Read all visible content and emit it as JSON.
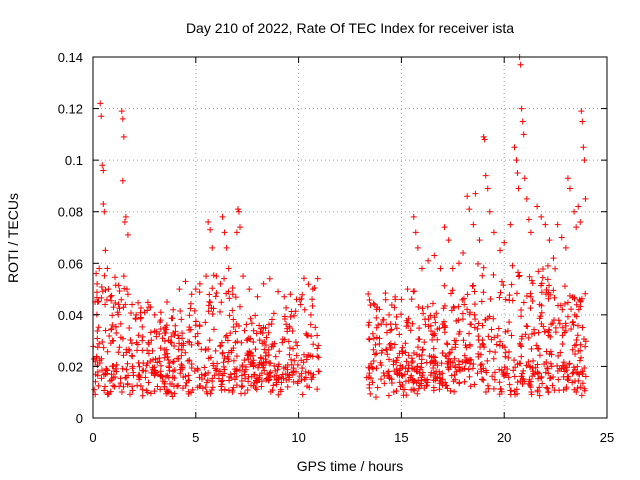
{
  "chart_data": {
    "type": "scatter",
    "title": "Day 210 of 2022, Rate Of TEC Index for receiver ista",
    "xlabel": "GPS time / hours",
    "ylabel": "ROTI / TECUs",
    "xlim": [
      0,
      25
    ],
    "ylim": [
      0,
      0.14
    ],
    "xticks": [
      0,
      5,
      10,
      15,
      20,
      25
    ],
    "xtick_labels": [
      "0",
      "5",
      "10",
      "15",
      "20",
      "25"
    ],
    "yticks": [
      0,
      0.02,
      0.04,
      0.06,
      0.08,
      0.1,
      0.12,
      0.14
    ],
    "ytick_labels": [
      "0",
      "0.02",
      "0.04",
      "0.06",
      "0.08",
      "0.1",
      "0.12",
      "0.14"
    ],
    "grid": true,
    "marker": "+",
    "color": "#ff0000",
    "data_gap_hours": [
      11.0,
      13.3
    ],
    "series": [
      {
        "name": "ROTI",
        "points": [
          [
            0.1,
            0.045
          ],
          [
            0.15,
            0.056
          ],
          [
            0.2,
            0.052
          ],
          [
            0.3,
            0.058
          ],
          [
            0.35,
            0.122
          ],
          [
            0.4,
            0.117
          ],
          [
            0.45,
            0.098
          ],
          [
            0.5,
            0.096
          ],
          [
            0.5,
            0.083
          ],
          [
            0.55,
            0.08
          ],
          [
            0.6,
            0.065
          ],
          [
            0.7,
            0.058
          ],
          [
            0.75,
            0.05
          ],
          [
            0.85,
            0.047
          ],
          [
            1.0,
            0.043
          ],
          [
            1.2,
            0.041
          ],
          [
            1.4,
            0.119
          ],
          [
            1.45,
            0.116
          ],
          [
            1.5,
            0.109
          ],
          [
            1.45,
            0.092
          ],
          [
            1.6,
            0.078
          ],
          [
            1.55,
            0.076
          ],
          [
            1.7,
            0.071
          ],
          [
            1.5,
            0.055
          ],
          [
            1.7,
            0.048
          ],
          [
            1.65,
            0.05
          ],
          [
            1.9,
            0.044
          ],
          [
            2.1,
            0.04
          ],
          [
            2.5,
            0.041
          ],
          [
            2.8,
            0.043
          ],
          [
            3.0,
            0.04
          ],
          [
            3.3,
            0.041
          ],
          [
            3.6,
            0.045
          ],
          [
            3.9,
            0.042
          ],
          [
            4.2,
            0.05
          ],
          [
            4.5,
            0.053
          ],
          [
            4.8,
            0.048
          ],
          [
            5.0,
            0.05
          ],
          [
            5.2,
            0.052
          ],
          [
            5.5,
            0.055
          ],
          [
            5.6,
            0.076
          ],
          [
            5.7,
            0.073
          ],
          [
            5.8,
            0.066
          ],
          [
            6.0,
            0.055
          ],
          [
            6.2,
            0.052
          ],
          [
            6.3,
            0.078
          ],
          [
            6.4,
            0.072
          ],
          [
            6.5,
            0.066
          ],
          [
            6.6,
            0.058
          ],
          [
            6.8,
            0.048
          ],
          [
            7.0,
            0.072
          ],
          [
            7.05,
            0.081
          ],
          [
            7.1,
            0.08
          ],
          [
            7.15,
            0.074
          ],
          [
            7.3,
            0.055
          ],
          [
            7.6,
            0.05
          ],
          [
            8.0,
            0.047
          ],
          [
            8.3,
            0.052
          ],
          [
            8.6,
            0.054
          ],
          [
            9.0,
            0.049
          ],
          [
            9.3,
            0.047
          ],
          [
            9.6,
            0.048
          ],
          [
            9.9,
            0.046
          ],
          [
            10.1,
            0.044
          ],
          [
            10.3,
            0.042
          ],
          [
            10.6,
            0.04
          ],
          [
            10.9,
            0.032
          ],
          [
            13.4,
            0.036
          ],
          [
            13.8,
            0.035
          ],
          [
            14.1,
            0.038
          ],
          [
            14.4,
            0.04
          ],
          [
            14.7,
            0.046
          ],
          [
            15.0,
            0.046
          ],
          [
            15.3,
            0.05
          ],
          [
            15.6,
            0.078
          ],
          [
            15.7,
            0.072
          ],
          [
            15.8,
            0.066
          ],
          [
            16.0,
            0.058
          ],
          [
            16.3,
            0.061
          ],
          [
            16.6,
            0.063
          ],
          [
            16.9,
            0.058
          ],
          [
            17.1,
            0.074
          ],
          [
            17.3,
            0.069
          ],
          [
            17.5,
            0.058
          ],
          [
            17.8,
            0.06
          ],
          [
            18.0,
            0.064
          ],
          [
            18.2,
            0.086
          ],
          [
            18.3,
            0.081
          ],
          [
            18.5,
            0.075
          ],
          [
            18.6,
            0.087
          ],
          [
            18.8,
            0.069
          ],
          [
            19.0,
            0.109
          ],
          [
            19.05,
            0.108
          ],
          [
            19.1,
            0.094
          ],
          [
            19.2,
            0.089
          ],
          [
            19.3,
            0.08
          ],
          [
            19.5,
            0.072
          ],
          [
            19.8,
            0.065
          ],
          [
            20.0,
            0.068
          ],
          [
            20.3,
            0.075
          ],
          [
            20.5,
            0.105
          ],
          [
            20.6,
            0.1
          ],
          [
            20.65,
            0.095
          ],
          [
            20.7,
            0.089
          ],
          [
            20.75,
            0.14
          ],
          [
            20.8,
            0.137
          ],
          [
            20.85,
            0.12
          ],
          [
            20.9,
            0.115
          ],
          [
            20.95,
            0.11
          ],
          [
            21.0,
            0.093
          ],
          [
            21.1,
            0.085
          ],
          [
            21.2,
            0.077
          ],
          [
            21.3,
            0.072
          ],
          [
            21.6,
            0.082
          ],
          [
            21.8,
            0.078
          ],
          [
            22.0,
            0.075
          ],
          [
            22.2,
            0.069
          ],
          [
            22.4,
            0.062
          ],
          [
            22.6,
            0.075
          ],
          [
            22.8,
            0.07
          ],
          [
            23.0,
            0.066
          ],
          [
            23.1,
            0.093
          ],
          [
            23.2,
            0.089
          ],
          [
            23.4,
            0.08
          ],
          [
            23.5,
            0.074
          ],
          [
            23.6,
            0.082
          ],
          [
            23.7,
            0.076
          ],
          [
            23.75,
            0.119
          ],
          [
            23.8,
            0.115
          ],
          [
            23.85,
            0.105
          ],
          [
            23.9,
            0.1
          ],
          [
            23.95,
            0.085
          ]
        ]
      }
    ]
  }
}
